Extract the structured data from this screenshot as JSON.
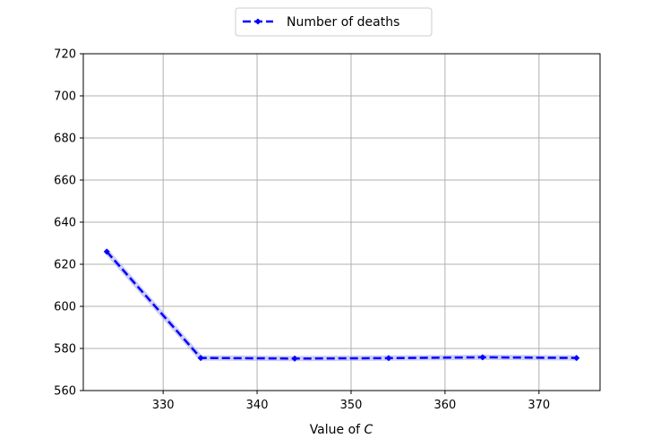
{
  "chart_data": {
    "type": "line",
    "title": "",
    "xlabel_prefix": "Value of ",
    "xlabel_var": "C",
    "ylabel": "",
    "xlim": [
      321.5,
      376.5
    ],
    "ylim": [
      560,
      720
    ],
    "xticks": [
      330,
      340,
      350,
      360,
      370
    ],
    "yticks": [
      560,
      580,
      600,
      620,
      640,
      660,
      680,
      700,
      720
    ],
    "grid": true,
    "legend_position": "top-center",
    "series": [
      {
        "name": "Number of deaths",
        "color": "#0000ff",
        "line_style": "dashed",
        "marker": "diamond",
        "x": [
          324,
          334,
          344,
          354,
          364,
          374
        ],
        "y": [
          626,
          575.5,
          575.2,
          575.4,
          575.8,
          575.5
        ]
      }
    ]
  }
}
